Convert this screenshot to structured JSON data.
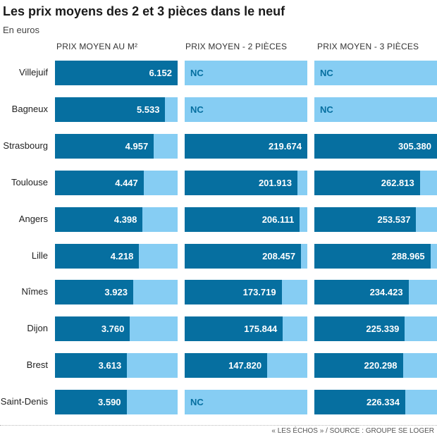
{
  "title": "Les prix moyens des 2 et 3 pièces dans le neuf",
  "subtitle": "En euros",
  "source": "« LES ÉCHOS » / SOURCE : GROUPE SE LOGER",
  "nc_label": "NC",
  "colors": {
    "dark": "#066fa0",
    "light": "#86cdf3"
  },
  "chart_data": {
    "type": "bar",
    "categories": [
      "Villejuif",
      "Bagneux",
      "Strasbourg",
      "Toulouse",
      "Angers",
      "Lille",
      "Nîmes",
      "Dijon",
      "Brest",
      "Saint-Denis"
    ],
    "series": [
      {
        "name": "PRIX MOYEN AU M²",
        "values": [
          6152,
          5533,
          4957,
          4447,
          4398,
          4218,
          3923,
          3760,
          3613,
          3590
        ],
        "labels": [
          "6.152",
          "5.533",
          "4.957",
          "4.447",
          "4.398",
          "4.218",
          "3.923",
          "3.760",
          "3.613",
          "3.590"
        ]
      },
      {
        "name": "PRIX MOYEN - 2 PIÈCES",
        "values": [
          null,
          null,
          219674,
          201913,
          206111,
          208457,
          173719,
          175844,
          147820,
          null
        ],
        "labels": [
          "NC",
          "NC",
          "219.674",
          "201.913",
          "206.111",
          "208.457",
          "173.719",
          "175.844",
          "147.820",
          "NC"
        ]
      },
      {
        "name": "PRIX MOYEN - 3 PIÈCES",
        "values": [
          null,
          null,
          305380,
          262813,
          253537,
          288965,
          234423,
          225339,
          220298,
          226334
        ],
        "labels": [
          "NC",
          "NC",
          "305.380",
          "262.813",
          "253.537",
          "288.965",
          "234.423",
          "225.339",
          "220.298",
          "226.334"
        ]
      }
    ]
  }
}
